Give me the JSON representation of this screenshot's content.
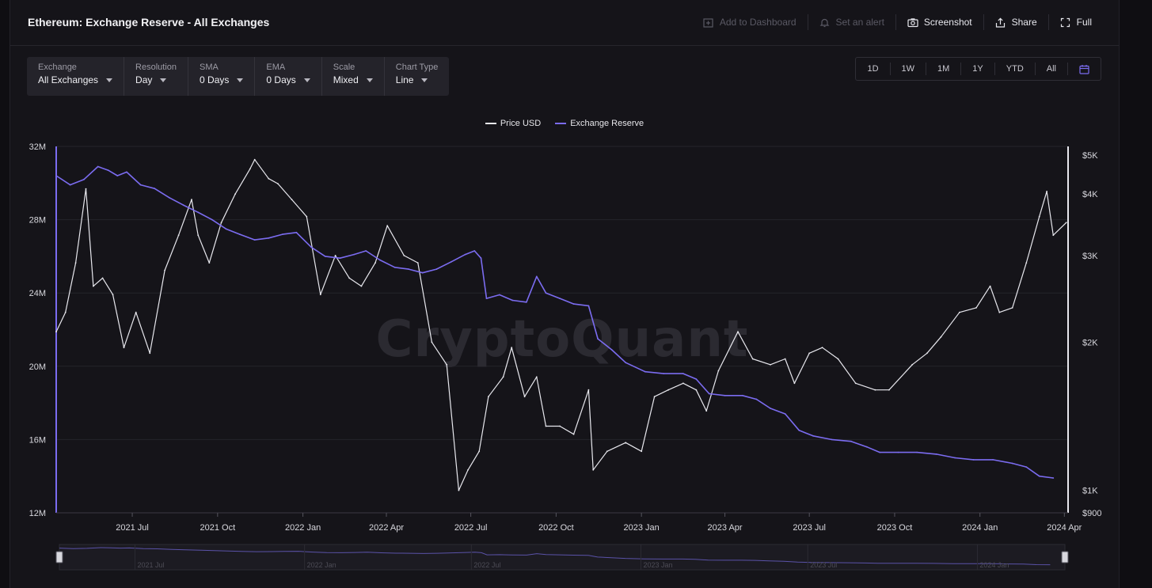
{
  "header": {
    "title": "Ethereum: Exchange Reserve - All Exchanges",
    "actions": {
      "add_dashboard": "Add to Dashboard",
      "set_alert": "Set an alert",
      "screenshot": "Screenshot",
      "share": "Share",
      "full": "Full"
    }
  },
  "controls": [
    {
      "label": "Exchange",
      "value": "All Exchanges"
    },
    {
      "label": "Resolution",
      "value": "Day"
    },
    {
      "label": "SMA",
      "value": "0 Days"
    },
    {
      "label": "EMA",
      "value": "0 Days"
    },
    {
      "label": "Scale",
      "value": "Mixed"
    },
    {
      "label": "Chart Type",
      "value": "Line"
    }
  ],
  "ranges": [
    "1D",
    "1W",
    "1M",
    "1Y",
    "YTD",
    "All"
  ],
  "watermark": "CryptoQuant",
  "colors": {
    "price": "#e8e8ee",
    "reserve": "#7b6cf0",
    "accent": "#7b6cf0"
  },
  "chart_data": {
    "type": "line",
    "title": "Ethereum: Exchange Reserve - All Exchanges",
    "legend": [
      "Price USD",
      "Exchange Reserve"
    ],
    "legend_position": "top-center",
    "grid": true,
    "x_ticks": [
      "2021 Jul",
      "2021 Oct",
      "2022 Jan",
      "2022 Apr",
      "2022 Jul",
      "2022 Oct",
      "2023 Jan",
      "2023 Apr",
      "2023 Jul",
      "2023 Oct",
      "2024 Jan",
      "2024 Apr"
    ],
    "y_left_ticks": [
      "32M",
      "28M",
      "24M",
      "20M",
      "16M",
      "12M"
    ],
    "y_right_ticks": [
      "$5K",
      "$4K",
      "$3K",
      "$2K",
      "$1K",
      "$900"
    ],
    "y_left_range": [
      12000000,
      32000000
    ],
    "y_right_range": [
      900,
      5000
    ],
    "y_right_scale": "log",
    "x_range": [
      "2021-04-10",
      "2024-04-05"
    ],
    "series": [
      {
        "name": "Exchange Reserve",
        "axis": "left",
        "points": [
          [
            "2021-04-10",
            30.4
          ],
          [
            "2021-04-25",
            29.9
          ],
          [
            "2021-05-10",
            30.2
          ],
          [
            "2021-05-25",
            30.9
          ],
          [
            "2021-06-05",
            30.7
          ],
          [
            "2021-06-15",
            30.4
          ],
          [
            "2021-06-25",
            30.6
          ],
          [
            "2021-07-10",
            29.9
          ],
          [
            "2021-07-25",
            29.7
          ],
          [
            "2021-08-10",
            29.2
          ],
          [
            "2021-08-25",
            28.8
          ],
          [
            "2021-09-10",
            28.4
          ],
          [
            "2021-09-25",
            28.0
          ],
          [
            "2021-10-10",
            27.5
          ],
          [
            "2021-10-25",
            27.2
          ],
          [
            "2021-11-10",
            26.9
          ],
          [
            "2021-11-25",
            27.0
          ],
          [
            "2021-12-10",
            27.2
          ],
          [
            "2021-12-25",
            27.3
          ],
          [
            "2022-01-10",
            26.5
          ],
          [
            "2022-01-25",
            26.0
          ],
          [
            "2022-02-10",
            25.9
          ],
          [
            "2022-02-25",
            26.1
          ],
          [
            "2022-03-10",
            26.3
          ],
          [
            "2022-03-25",
            25.8
          ],
          [
            "2022-04-10",
            25.4
          ],
          [
            "2022-04-25",
            25.3
          ],
          [
            "2022-05-10",
            25.1
          ],
          [
            "2022-05-25",
            25.3
          ],
          [
            "2022-06-10",
            25.7
          ],
          [
            "2022-06-25",
            26.1
          ],
          [
            "2022-07-05",
            26.3
          ],
          [
            "2022-07-12",
            25.9
          ],
          [
            "2022-07-18",
            23.7
          ],
          [
            "2022-08-01",
            23.9
          ],
          [
            "2022-08-15",
            23.6
          ],
          [
            "2022-08-30",
            23.5
          ],
          [
            "2022-09-10",
            24.9
          ],
          [
            "2022-09-20",
            24.0
          ],
          [
            "2022-10-05",
            23.7
          ],
          [
            "2022-10-20",
            23.4
          ],
          [
            "2022-11-05",
            23.3
          ],
          [
            "2022-11-15",
            21.5
          ],
          [
            "2022-11-30",
            20.9
          ],
          [
            "2022-12-15",
            20.2
          ],
          [
            "2023-01-05",
            19.7
          ],
          [
            "2023-01-25",
            19.6
          ],
          [
            "2023-02-15",
            19.6
          ],
          [
            "2023-03-01",
            19.3
          ],
          [
            "2023-03-15",
            18.5
          ],
          [
            "2023-04-01",
            18.4
          ],
          [
            "2023-04-20",
            18.4
          ],
          [
            "2023-05-05",
            18.2
          ],
          [
            "2023-05-20",
            17.7
          ],
          [
            "2023-06-05",
            17.4
          ],
          [
            "2023-06-20",
            16.5
          ],
          [
            "2023-07-05",
            16.2
          ],
          [
            "2023-07-25",
            16.0
          ],
          [
            "2023-08-15",
            15.9
          ],
          [
            "2023-09-01",
            15.6
          ],
          [
            "2023-09-15",
            15.3
          ],
          [
            "2023-10-05",
            15.3
          ],
          [
            "2023-10-25",
            15.3
          ],
          [
            "2023-11-15",
            15.2
          ],
          [
            "2023-12-05",
            15.0
          ],
          [
            "2023-12-25",
            14.9
          ],
          [
            "2024-01-15",
            14.9
          ],
          [
            "2024-02-05",
            14.7
          ],
          [
            "2024-02-20",
            14.5
          ],
          [
            "2024-03-05",
            14.0
          ],
          [
            "2024-03-20",
            13.9
          ]
        ]
      },
      {
        "name": "Price USD",
        "axis": "right",
        "points": [
          [
            "2021-04-10",
            2100
          ],
          [
            "2021-04-20",
            2300
          ],
          [
            "2021-05-01",
            2900
          ],
          [
            "2021-05-12",
            4100
          ],
          [
            "2021-05-20",
            2600
          ],
          [
            "2021-05-30",
            2700
          ],
          [
            "2021-06-10",
            2500
          ],
          [
            "2021-06-22",
            1950
          ],
          [
            "2021-07-05",
            2300
          ],
          [
            "2021-07-20",
            1900
          ],
          [
            "2021-08-05",
            2800
          ],
          [
            "2021-08-20",
            3300
          ],
          [
            "2021-09-03",
            3900
          ],
          [
            "2021-09-10",
            3300
          ],
          [
            "2021-09-22",
            2900
          ],
          [
            "2021-10-05",
            3500
          ],
          [
            "2021-10-20",
            4000
          ],
          [
            "2021-11-05",
            4500
          ],
          [
            "2021-11-10",
            4700
          ],
          [
            "2021-11-25",
            4300
          ],
          [
            "2021-12-05",
            4200
          ],
          [
            "2021-12-20",
            3900
          ],
          [
            "2022-01-05",
            3600
          ],
          [
            "2022-01-20",
            2500
          ],
          [
            "2022-02-05",
            3000
          ],
          [
            "2022-02-20",
            2700
          ],
          [
            "2022-03-05",
            2600
          ],
          [
            "2022-03-20",
            2900
          ],
          [
            "2022-04-02",
            3450
          ],
          [
            "2022-04-20",
            3000
          ],
          [
            "2022-05-05",
            2900
          ],
          [
            "2022-05-20",
            2000
          ],
          [
            "2022-06-05",
            1800
          ],
          [
            "2022-06-18",
            1000
          ],
          [
            "2022-06-28",
            1100
          ],
          [
            "2022-07-10",
            1200
          ],
          [
            "2022-07-20",
            1550
          ],
          [
            "2022-08-05",
            1700
          ],
          [
            "2022-08-14",
            1950
          ],
          [
            "2022-08-28",
            1550
          ],
          [
            "2022-09-10",
            1700
          ],
          [
            "2022-09-20",
            1350
          ],
          [
            "2022-10-05",
            1350
          ],
          [
            "2022-10-20",
            1300
          ],
          [
            "2022-11-05",
            1600
          ],
          [
            "2022-11-10",
            1100
          ],
          [
            "2022-11-25",
            1200
          ],
          [
            "2022-12-15",
            1250
          ],
          [
            "2023-01-01",
            1200
          ],
          [
            "2023-01-15",
            1550
          ],
          [
            "2023-01-30",
            1600
          ],
          [
            "2023-02-15",
            1650
          ],
          [
            "2023-03-01",
            1600
          ],
          [
            "2023-03-12",
            1450
          ],
          [
            "2023-03-25",
            1750
          ],
          [
            "2023-04-15",
            2100
          ],
          [
            "2023-05-01",
            1850
          ],
          [
            "2023-05-20",
            1800
          ],
          [
            "2023-06-05",
            1850
          ],
          [
            "2023-06-15",
            1650
          ],
          [
            "2023-07-01",
            1900
          ],
          [
            "2023-07-15",
            1950
          ],
          [
            "2023-08-01",
            1850
          ],
          [
            "2023-08-20",
            1650
          ],
          [
            "2023-09-10",
            1600
          ],
          [
            "2023-09-25",
            1600
          ],
          [
            "2023-10-20",
            1800
          ],
          [
            "2023-11-05",
            1900
          ],
          [
            "2023-11-20",
            2050
          ],
          [
            "2023-12-10",
            2300
          ],
          [
            "2023-12-28",
            2350
          ],
          [
            "2024-01-12",
            2600
          ],
          [
            "2024-01-22",
            2300
          ],
          [
            "2024-02-05",
            2350
          ],
          [
            "2024-02-20",
            2900
          ],
          [
            "2024-03-05",
            3600
          ],
          [
            "2024-03-13",
            4050
          ],
          [
            "2024-03-20",
            3300
          ],
          [
            "2024-04-03",
            3500
          ]
        ]
      }
    ]
  },
  "navigator": {
    "labels": [
      "2021 Jul",
      "2022 Jan",
      "2022 Jul",
      "2023 Jan",
      "2023 Jul",
      "2024 Jan"
    ]
  }
}
